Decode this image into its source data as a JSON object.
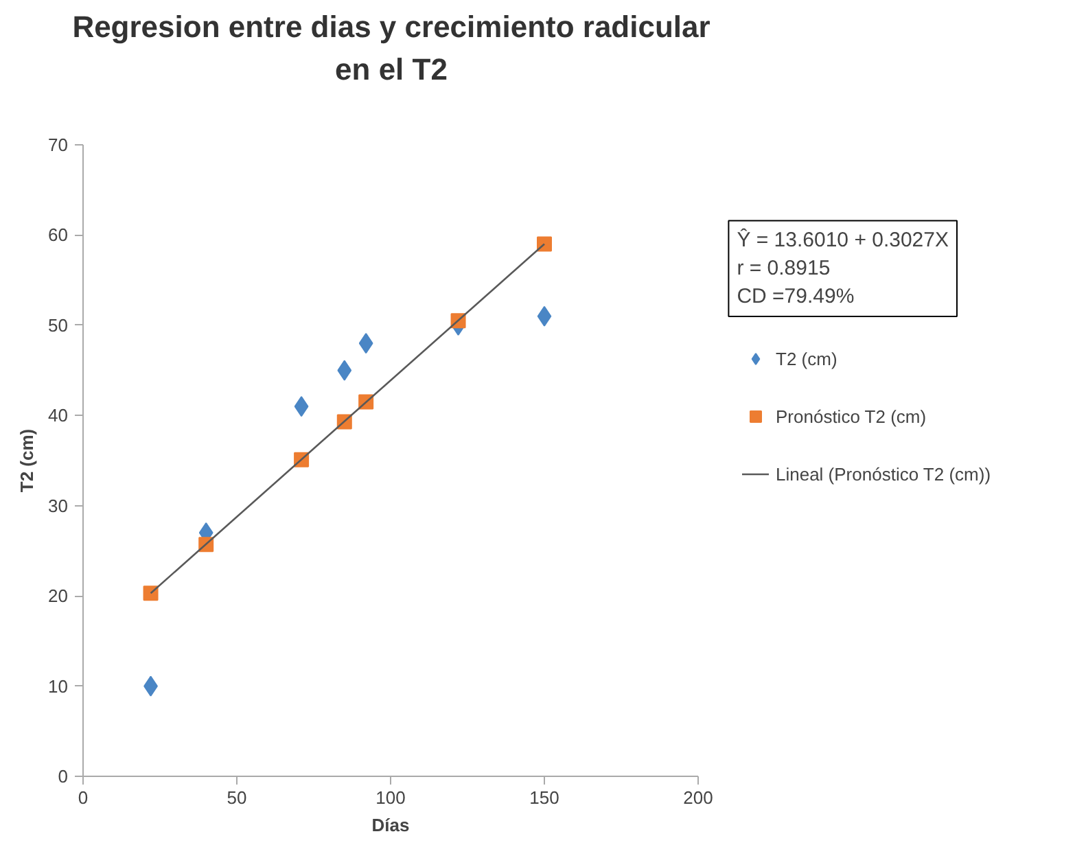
{
  "chart_data": {
    "type": "scatter",
    "title": "Regresion entre dias y crecimiento radicular\nen el T2",
    "xlabel": "Días",
    "ylabel": "T2 (cm)",
    "x": [
      22,
      40,
      71,
      85,
      92,
      122,
      150
    ],
    "series": [
      {
        "name": "T2 (cm)",
        "color": "#4a86c5",
        "marker": "diamond",
        "values": [
          10,
          27,
          41,
          45,
          48,
          50,
          51
        ]
      },
      {
        "name": "Pronóstico T2 (cm)",
        "color": "#ed7d31",
        "marker": "square",
        "values": [
          20.3,
          25.7,
          35.1,
          39.3,
          41.5,
          50.5,
          59.0
        ]
      },
      {
        "name": "Lineal (Pronóstico T2 (cm))",
        "type": "line",
        "color": "#595959",
        "x": [
          22,
          150
        ],
        "values": [
          20.3,
          59.0
        ]
      }
    ],
    "annotations": [
      "Ŷ = 13.6010 + 0.3027X",
      "r = 0.8915",
      "CD =79.49%"
    ],
    "xlim": [
      0,
      200
    ],
    "xticks": [
      0,
      50,
      100,
      150,
      200
    ],
    "ylim": [
      0,
      70
    ],
    "yticks": [
      0,
      10,
      20,
      30,
      40,
      50,
      60,
      70
    ],
    "grid": false,
    "legend": "right"
  }
}
